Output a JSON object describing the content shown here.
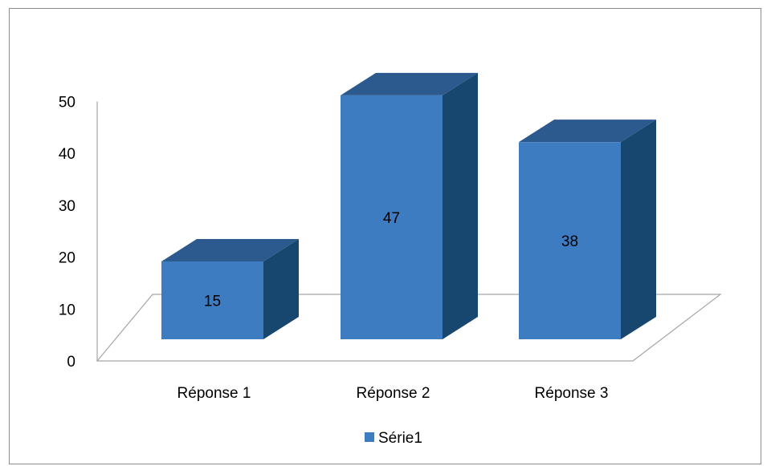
{
  "chart_data": {
    "type": "bar",
    "style": "3d-column",
    "title": "",
    "xlabel": "",
    "ylabel": "",
    "categories": [
      "Réponse 1",
      "Réponse 2",
      "Réponse 3"
    ],
    "series": [
      {
        "name": "Série1",
        "values": [
          15,
          47,
          38
        ],
        "color": "#3E7CC1"
      }
    ],
    "yticks": [
      0,
      10,
      20,
      30,
      40,
      50
    ],
    "ylim": [
      0,
      50
    ],
    "data_labels": true,
    "legend_position": "bottom",
    "grid": false
  },
  "colors": {
    "bar_front": "#3E7CC1",
    "bar_top": "#2C5A8E",
    "bar_side": "#17466F",
    "axis": "#a6a6a6",
    "frame_border": "#8c8c8c"
  }
}
